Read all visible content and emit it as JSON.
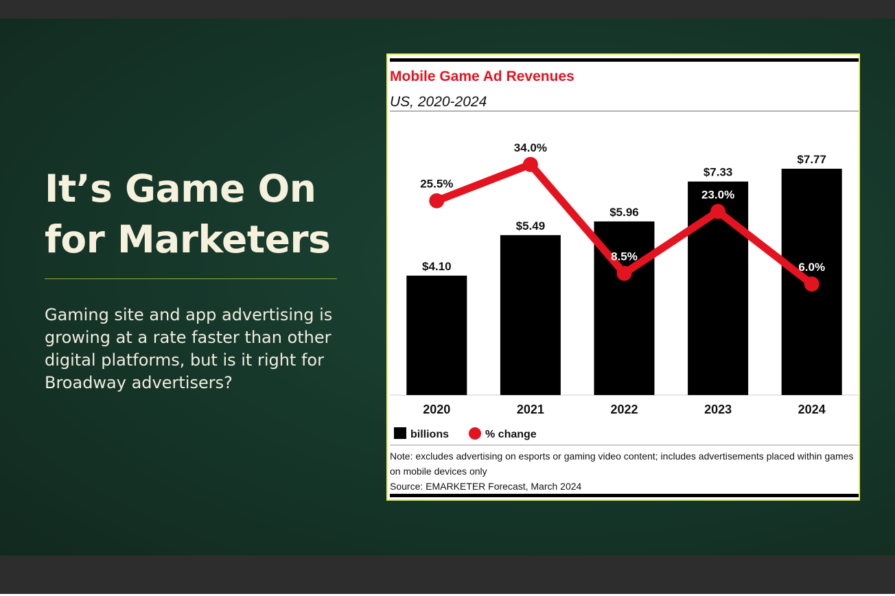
{
  "slide": {
    "headline_line1": "It’s Game On",
    "headline_line2": "for Marketers",
    "body_text": "Gaming site and app advertising is growing at a rate faster than other digital platforms, but is it right for Broadway advertisers?"
  },
  "colors": {
    "background": "#173a2d",
    "headline": "#f6f1dc",
    "accent_line": "#9aa63f",
    "card_border": "#e7f06a",
    "chart_title": "#e3141f",
    "bar": "#000000",
    "line": "#e3141f"
  },
  "chart_data": {
    "type": "bar",
    "title": "Mobile Game Ad Revenues",
    "subtitle": "US, 2020-2024",
    "categories": [
      "2020",
      "2021",
      "2022",
      "2023",
      "2024"
    ],
    "series": [
      {
        "name": "billions",
        "type": "bar",
        "values": [
          4.1,
          5.49,
          5.96,
          7.33,
          7.77
        ],
        "labels": [
          "$4.10",
          "$5.49",
          "$5.96",
          "$7.33",
          "$7.77"
        ]
      },
      {
        "name": "% change",
        "type": "line",
        "values": [
          25.5,
          34.0,
          8.5,
          23.0,
          6.0
        ],
        "labels": [
          "25.5%",
          "34.0%",
          "8.5%",
          "23.0%",
          "6.0%"
        ]
      }
    ],
    "bar_axis_range": [
      0,
      8.5
    ],
    "line_axis_range": [
      -20,
      42
    ],
    "grid": false,
    "legend_position": "bottom-left",
    "note": "Note: excludes advertising on esports or gaming video content; includes advertisements placed within games on mobile devices only",
    "source": "Source: EMARKETER Forecast, March 2024"
  }
}
